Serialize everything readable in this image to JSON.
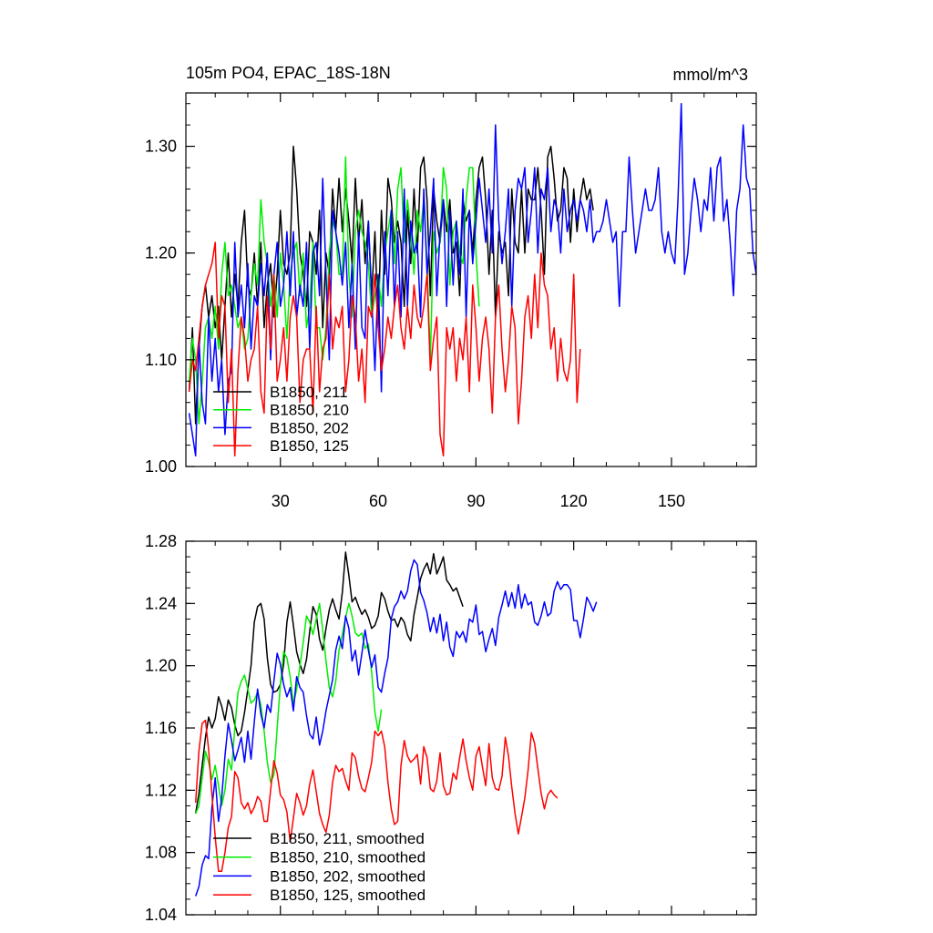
{
  "chart_data": [
    {
      "type": "line",
      "title": "105m PO4, EPAC_18S-18N",
      "units": "mmol/m^3",
      "xlim": [
        1,
        176
      ],
      "ylim": [
        1.0,
        1.35
      ],
      "x_ticks": [
        30,
        60,
        90,
        120,
        150
      ],
      "y_ticks": [
        1.0,
        1.1,
        1.2,
        1.3
      ],
      "y_tick_labels": [
        "1.00",
        "1.10",
        "1.20",
        "1.30"
      ],
      "legend_position": "bottom-left",
      "series": [
        {
          "name": "B1850, 211",
          "color": "#000000",
          "x_start": 2,
          "values": [
            1.07,
            1.13,
            1.04,
            1.11,
            1.15,
            1.17,
            1.14,
            1.16,
            1.13,
            1.15,
            1.1,
            1.15,
            1.2,
            1.14,
            1.18,
            1.15,
            1.21,
            1.24,
            1.17,
            1.16,
            1.2,
            1.15,
            1.21,
            1.13,
            1.17,
            1.19,
            1.14,
            1.18,
            1.24,
            1.19,
            1.18,
            1.2,
            1.3,
            1.26,
            1.2,
            1.18,
            1.15,
            1.22,
            1.21,
            1.18,
            1.24,
            1.13,
            1.2,
            1.18,
            1.26,
            1.22,
            1.27,
            1.22,
            1.26,
            1.23,
            1.19,
            1.27,
            1.21,
            1.25,
            1.19,
            1.23,
            1.16,
            1.22,
            1.13,
            1.24,
            1.18,
            1.27,
            1.25,
            1.21,
            1.23,
            1.21,
            1.15,
            1.24,
            1.19,
            1.26,
            1.2,
            1.28,
            1.29,
            1.25,
            1.16,
            1.26,
            1.23,
            1.21,
            1.25,
            1.22,
            1.25,
            1.2,
            1.21,
            1.16,
            1.25,
            1.23,
            1.24,
            1.2,
            1.25,
            1.28,
            1.29,
            1.25,
            1.18,
            1.24,
            1.14,
            1.22,
            1.2,
            1.21,
            1.16,
            1.26,
            1.21,
            1.2,
            1.26,
            1.2,
            1.26,
            1.25,
            1.25,
            1.28,
            1.24,
            1.18,
            1.29,
            1.3,
            1.27,
            1.23,
            1.24,
            1.28,
            1.27,
            1.21,
            1.26,
            1.22,
            1.25,
            1.27,
            1.25,
            1.26,
            1.24
          ]
        },
        {
          "name": "B1850, 210",
          "color": "#00ee00",
          "x_start": 2,
          "values": [
            1.08,
            1.12,
            1.1,
            1.04,
            1.08,
            1.13,
            1.14,
            1.12,
            1.15,
            1.11,
            1.18,
            1.21,
            1.16,
            1.17,
            1.15,
            1.13,
            1.14,
            1.11,
            1.12,
            1.16,
            1.19,
            1.17,
            1.25,
            1.21,
            1.19,
            1.15,
            1.18,
            1.14,
            1.2,
            1.17,
            1.12,
            1.18,
            1.2,
            1.21,
            1.16,
            1.2,
            1.13,
            1.15,
            1.21,
            1.13,
            1.13,
            1.1,
            1.13,
            1.2,
            1.23,
            1.22,
            1.18,
            1.18,
            1.29,
            1.18,
            1.14,
            1.22,
            1.24,
            1.22,
            1.21,
            1.19,
            1.14,
            1.16,
            1.18,
            1.15,
            1.2,
            1.22,
            1.24,
            1.19,
            1.26,
            1.28,
            1.21,
            1.25,
            1.22,
            1.18,
            1.24,
            1.22,
            1.25,
            1.19,
            1.1,
            1.22,
            1.2,
            1.21,
            1.28,
            1.26,
            1.17,
            1.22,
            1.23,
            1.2,
            1.19,
            1.25,
            1.28,
            1.28,
            1.2,
            1.15
          ]
        },
        {
          "name": "B1850, 202",
          "color": "#0000ff",
          "x_start": 2,
          "values": [
            1.05,
            1.03,
            1.01,
            1.12,
            1.06,
            1.04,
            1.14,
            1.08,
            1.12,
            1.07,
            1.1,
            1.03,
            1.08,
            1.09,
            1.21,
            1.14,
            1.17,
            1.13,
            1.19,
            1.11,
            1.16,
            1.15,
            1.19,
            1.16,
            1.2,
            1.1,
            1.18,
            1.21,
            1.15,
            1.17,
            1.22,
            1.16,
            1.22,
            1.14,
            1.17,
            1.15,
            1.21,
            1.11,
            1.2,
            1.21,
            1.16,
            1.27,
            1.18,
            1.1,
            1.24,
            1.22,
            1.2,
            1.17,
            1.21,
            1.13,
            1.19,
            1.11,
            1.22,
            1.13,
            1.12,
            1.23,
            1.16,
            1.09,
            1.18,
            1.07,
            1.22,
            1.16,
            1.24,
            1.15,
            1.22,
            1.14,
            1.26,
            1.15,
            1.23,
            1.2,
            1.21,
            1.14,
            1.26,
            1.18,
            1.22,
            1.27,
            1.16,
            1.22,
            1.25,
            1.15,
            1.24,
            1.17,
            1.23,
            1.18,
            1.26,
            1.14,
            1.24,
            1.19,
            1.23,
            1.27,
            1.24,
            1.21,
            1.26,
            1.2,
            1.32,
            1.23,
            1.19,
            1.22,
            1.26,
            1.15,
            1.24,
            1.27,
            1.26,
            1.28,
            1.21,
            1.24,
            1.28,
            1.2,
            1.26,
            1.25,
            1.28,
            1.22,
            1.25,
            1.24,
            1.2,
            1.26,
            1.22,
            1.24,
            1.25,
            1.23,
            1.25,
            1.24,
            1.22,
            1.25,
            1.21,
            1.22,
            1.22,
            1.23,
            1.25,
            1.23,
            1.21,
            1.22,
            1.15,
            1.22,
            1.22,
            1.29,
            1.24,
            1.2,
            1.22,
            1.24,
            1.26,
            1.24,
            1.24,
            1.25,
            1.28,
            1.22,
            1.2,
            1.22,
            1.2,
            1.19,
            1.25,
            1.34,
            1.18,
            1.2,
            1.24,
            1.27,
            1.25,
            1.22,
            1.25,
            1.24,
            1.28,
            1.23,
            1.28,
            1.29,
            1.23,
            1.25,
            1.21,
            1.16,
            1.24,
            1.26,
            1.32,
            1.27,
            1.26,
            1.2,
            1.18
          ]
        },
        {
          "name": "B1850, 125",
          "color": "#ff0000",
          "x_start": 2,
          "values": [
            1.07,
            1.1,
            1.09,
            1.12,
            1.15,
            1.17,
            1.18,
            1.19,
            1.21,
            1.12,
            1.16,
            1.15,
            1.06,
            1.11,
            1.01,
            1.09,
            1.14,
            1.12,
            1.08,
            1.1,
            1.11,
            1.15,
            1.07,
            1.05,
            1.16,
            1.11,
            1.18,
            1.08,
            1.1,
            1.13,
            1.08,
            1.14,
            1.16,
            1.14,
            1.06,
            1.1,
            1.11,
            1.11,
            1.05,
            1.15,
            1.07,
            1.11,
            1.12,
            1.18,
            1.11,
            1.14,
            1.13,
            1.15,
            1.07,
            1.1,
            1.16,
            1.14,
            1.08,
            1.11,
            1.06,
            1.15,
            1.14,
            1.18,
            1.13,
            1.09,
            1.11,
            1.14,
            1.12,
            1.15,
            1.17,
            1.13,
            1.11,
            1.15,
            1.12,
            1.17,
            1.14,
            1.13,
            1.15,
            1.18,
            1.09,
            1.12,
            1.14,
            1.03,
            1.01,
            1.13,
            1.11,
            1.13,
            1.08,
            1.12,
            1.1,
            1.14,
            1.07,
            1.17,
            1.13,
            1.08,
            1.12,
            1.14,
            1.11,
            1.05,
            1.14,
            1.17,
            1.11,
            1.07,
            1.1,
            1.15,
            1.13,
            1.04,
            1.08,
            1.14,
            1.16,
            1.12,
            1.18,
            1.13,
            1.2,
            1.17,
            1.16,
            1.11,
            1.13,
            1.08,
            1.12,
            1.09,
            1.08,
            1.1,
            1.18,
            1.06,
            1.11
          ]
        }
      ]
    },
    {
      "type": "line",
      "title": "",
      "xlim": [
        1,
        176
      ],
      "ylim": [
        1.04,
        1.28
      ],
      "x_ticks": [
        30,
        60,
        90,
        120,
        150
      ],
      "y_ticks": [
        1.04,
        1.08,
        1.12,
        1.16,
        1.2,
        1.24,
        1.28
      ],
      "y_tick_labels": [
        "1.04",
        "1.08",
        "1.12",
        "1.16",
        "1.20",
        "1.24",
        "1.28"
      ],
      "legend_position": "bottom-left",
      "series": [
        {
          "name": "B1850, 211, smoothed",
          "color": "#000000",
          "x_start": 4,
          "values": [
            1.105,
            1.118,
            1.136,
            1.154,
            1.167,
            1.16,
            1.166,
            1.18,
            1.174,
            1.165,
            1.178,
            1.173,
            1.162,
            1.155,
            1.158,
            1.17,
            1.185,
            1.2,
            1.228,
            1.238,
            1.24,
            1.23,
            1.205,
            1.188,
            1.183,
            1.184,
            1.188,
            1.201,
            1.228,
            1.241,
            1.226,
            1.209,
            1.201,
            1.195,
            1.204,
            1.222,
            1.238,
            1.233,
            1.217,
            1.21,
            1.224,
            1.236,
            1.243,
            1.236,
            1.23,
            1.247,
            1.273,
            1.258,
            1.241,
            1.244,
            1.238,
            1.233,
            1.236,
            1.231,
            1.224,
            1.226,
            1.232,
            1.247,
            1.243,
            1.235,
            1.229,
            1.23,
            1.225,
            1.231,
            1.228,
            1.22,
            1.216,
            1.233,
            1.244,
            1.256,
            1.262,
            1.266,
            1.259,
            1.272,
            1.259,
            1.264,
            1.27,
            1.255,
            1.252,
            1.248,
            1.25,
            1.244,
            1.238
          ]
        },
        {
          "name": "B1850, 210, smoothed",
          "color": "#00ee00",
          "x_start": 4,
          "values": [
            1.105,
            1.11,
            1.128,
            1.145,
            1.138,
            1.127,
            1.136,
            1.123,
            1.11,
            1.12,
            1.14,
            1.133,
            1.16,
            1.183,
            1.19,
            1.194,
            1.185,
            1.176,
            1.178,
            1.183,
            1.175,
            1.158,
            1.138,
            1.125,
            1.13,
            1.16,
            1.188,
            1.209,
            1.205,
            1.193,
            1.175,
            1.185,
            1.2,
            1.215,
            1.232,
            1.228,
            1.22,
            1.23,
            1.24,
            1.223,
            1.203,
            1.186,
            1.18,
            1.19,
            1.21,
            1.22,
            1.231,
            1.24,
            1.232,
            1.221,
            1.219,
            1.221,
            1.211,
            1.214,
            1.196,
            1.17,
            1.158,
            1.172
          ]
        },
        {
          "name": "B1850, 202, smoothed",
          "color": "#0000ff",
          "x_start": 4,
          "values": [
            1.052,
            1.058,
            1.072,
            1.078,
            1.076,
            1.109,
            1.128,
            1.1,
            1.115,
            1.142,
            1.163,
            1.152,
            1.139,
            1.146,
            1.154,
            1.138,
            1.158,
            1.14,
            1.164,
            1.185,
            1.169,
            1.16,
            1.175,
            1.17,
            1.19,
            1.208,
            1.201,
            1.188,
            1.18,
            1.186,
            1.171,
            1.193,
            1.186,
            1.183,
            1.168,
            1.156,
            1.153,
            1.167,
            1.149,
            1.158,
            1.171,
            1.181,
            1.191,
            1.21,
            1.219,
            1.211,
            1.232,
            1.224,
            1.203,
            1.21,
            1.194,
            1.208,
            1.223,
            1.21,
            1.199,
            1.207,
            1.186,
            1.183,
            1.195,
            1.205,
            1.23,
            1.238,
            1.241,
            1.248,
            1.243,
            1.248,
            1.261,
            1.268,
            1.265,
            1.247,
            1.242,
            1.234,
            1.222,
            1.231,
            1.221,
            1.233,
            1.216,
            1.228,
            1.212,
            1.206,
            1.222,
            1.218,
            1.222,
            1.215,
            1.23,
            1.228,
            1.239,
            1.22,
            1.222,
            1.209,
            1.217,
            1.224,
            1.213,
            1.231,
            1.239,
            1.248,
            1.238,
            1.247,
            1.237,
            1.252,
            1.237,
            1.246,
            1.239,
            1.241,
            1.228,
            1.226,
            1.232,
            1.241,
            1.232,
            1.234,
            1.248,
            1.254,
            1.249,
            1.252,
            1.252,
            1.249,
            1.229,
            1.229,
            1.218,
            1.23,
            1.244,
            1.24,
            1.235,
            1.241
          ]
        },
        {
          "name": "B1850, 125, smoothed",
          "color": "#ff0000",
          "x_start": 4,
          "values": [
            1.112,
            1.145,
            1.163,
            1.165,
            1.146,
            1.117,
            1.09,
            1.068,
            1.068,
            1.08,
            1.096,
            1.103,
            1.132,
            1.128,
            1.112,
            1.108,
            1.112,
            1.105,
            1.109,
            1.116,
            1.113,
            1.1,
            1.1,
            1.12,
            1.139,
            1.131,
            1.117,
            1.114,
            1.106,
            1.087,
            1.102,
            1.118,
            1.112,
            1.104,
            1.11,
            1.124,
            1.133,
            1.119,
            1.105,
            1.098,
            1.093,
            1.104,
            1.125,
            1.136,
            1.132,
            1.134,
            1.126,
            1.12,
            1.144,
            1.141,
            1.129,
            1.121,
            1.119,
            1.128,
            1.138,
            1.158,
            1.155,
            1.158,
            1.148,
            1.125,
            1.108,
            1.098,
            1.1,
            1.136,
            1.152,
            1.142,
            1.138,
            1.14,
            1.143,
            1.124,
            1.148,
            1.141,
            1.121,
            1.119,
            1.126,
            1.144,
            1.123,
            1.117,
            1.118,
            1.131,
            1.127,
            1.141,
            1.153,
            1.139,
            1.128,
            1.12,
            1.142,
            1.148,
            1.135,
            1.123,
            1.15,
            1.128,
            1.121,
            1.12,
            1.129,
            1.154,
            1.142,
            1.122,
            1.105,
            1.092,
            1.103,
            1.115,
            1.133,
            1.157,
            1.15,
            1.134,
            1.118,
            1.108,
            1.117,
            1.12,
            1.117,
            1.115
          ]
        }
      ]
    }
  ]
}
